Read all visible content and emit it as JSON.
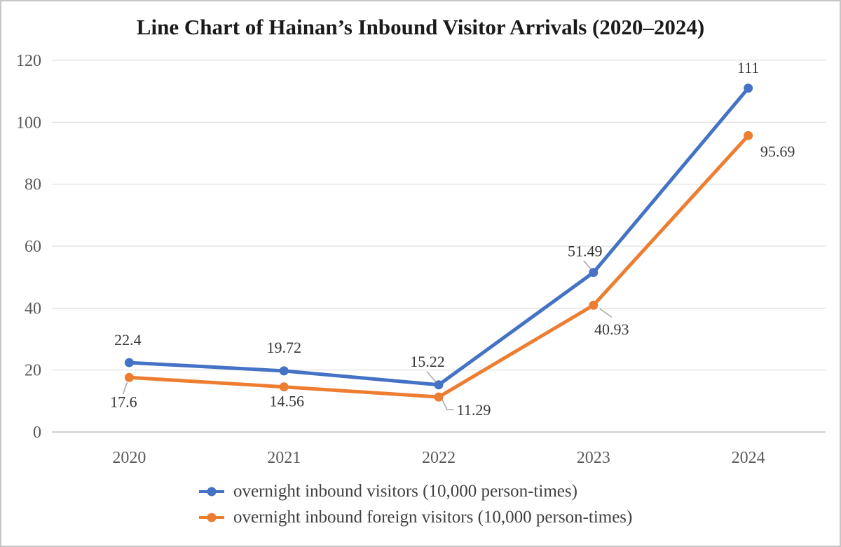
{
  "chart_data": {
    "type": "line",
    "title": "Line Chart of Hainan’s Inbound Visitor Arrivals (2020–2024)",
    "categories": [
      "2020",
      "2021",
      "2022",
      "2023",
      "2024"
    ],
    "series": [
      {
        "name": "overnight inbound visitors (10,000 person-times)",
        "color": "#4472C4",
        "values": [
          22.4,
          19.72,
          15.22,
          51.49,
          111
        ]
      },
      {
        "name": "overnight inbound foreign visitors (10,000 person-times)",
        "color": "#ED7D31",
        "values": [
          17.6,
          14.56,
          11.29,
          40.93,
          95.69
        ]
      }
    ],
    "xlabel": "",
    "ylabel": "",
    "ylim": [
      0,
      120
    ],
    "yticks": [
      0,
      20,
      40,
      60,
      80,
      100,
      120
    ],
    "grid": true,
    "legend_position": "bottom",
    "colors": {
      "gridline": "#d9d9d9",
      "axis_line": "#bfbfbf",
      "tick_text": "#595959",
      "data_label_text": "#363636",
      "leader_line": "#a6a6a6"
    }
  }
}
